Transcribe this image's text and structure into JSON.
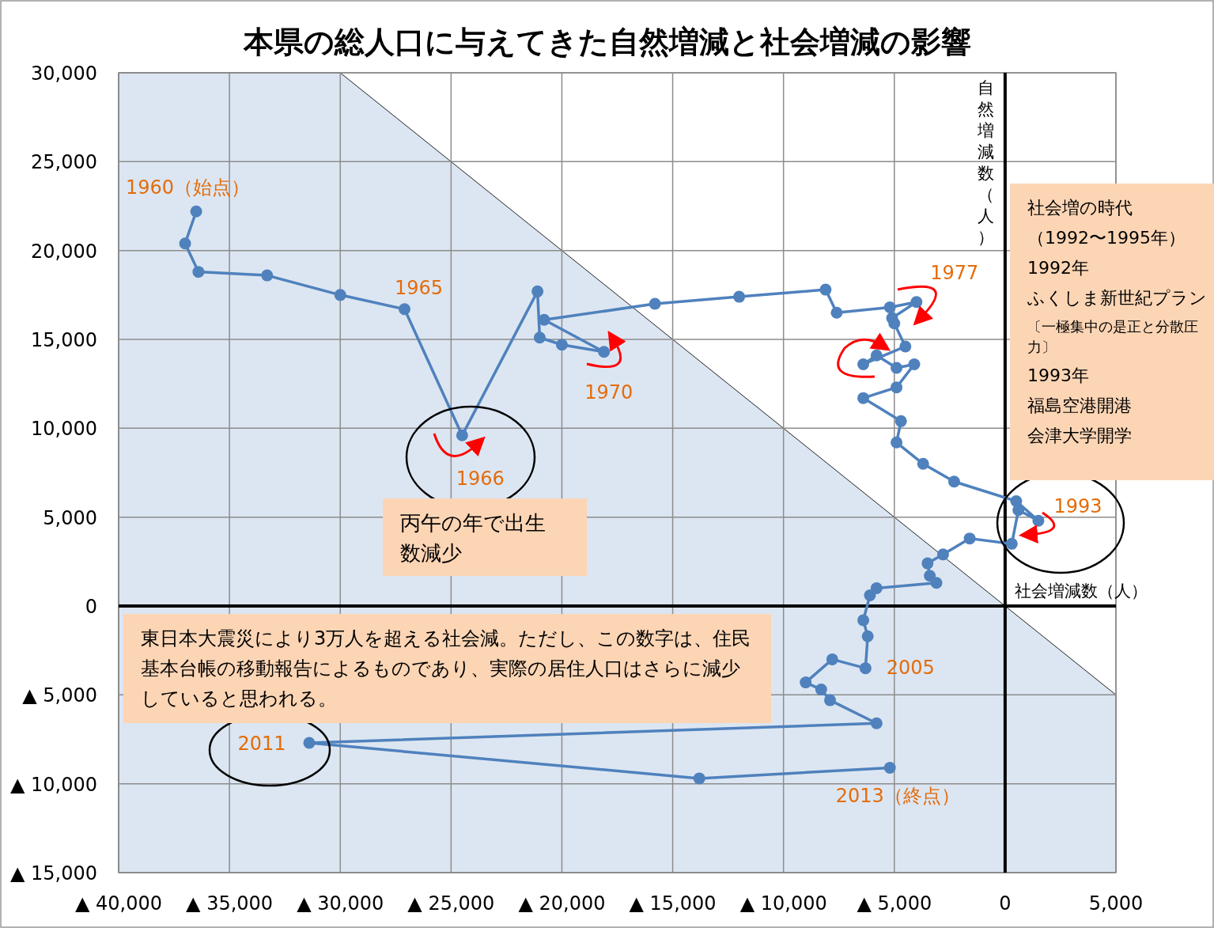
{
  "chart_data": {
    "type": "line",
    "title": "本県の総人口に与えてきた自然増減と社会増減の影響",
    "xlabel": "社会増減数（人）",
    "ylabel": "自然増減数（人）",
    "xlim": [
      -40000,
      5000
    ],
    "ylim": [
      -15000,
      30000
    ],
    "xticks": [
      {
        "value": -40000,
        "label": "▲ 40,000"
      },
      {
        "value": -35000,
        "label": "▲ 35,000"
      },
      {
        "value": -30000,
        "label": "▲ 30,000"
      },
      {
        "value": -25000,
        "label": "▲ 25,000"
      },
      {
        "value": -20000,
        "label": "▲ 20,000"
      },
      {
        "value": -15000,
        "label": "▲ 15,000"
      },
      {
        "value": -10000,
        "label": "▲ 10,000"
      },
      {
        "value": -5000,
        "label": "▲ 5,000"
      },
      0,
      {
        "value": 5000,
        "label": "5,000"
      }
    ],
    "yticks": [
      {
        "value": -15000,
        "label": "▲ 15,000"
      },
      {
        "value": -10000,
        "label": "▲ 10,000"
      },
      {
        "value": -5000,
        "label": "▲ 5,000"
      },
      0,
      {
        "value": 5000,
        "label": "5,000"
      },
      {
        "value": 10000,
        "label": "10,000"
      },
      {
        "value": 15000,
        "label": "15,000"
      },
      {
        "value": 20000,
        "label": "20,000"
      },
      {
        "value": 25000,
        "label": "25,000"
      },
      {
        "value": 30000,
        "label": "30,000"
      }
    ],
    "grid": true,
    "series": [
      {
        "type": "area",
        "color": "#dce6f2",
        "x": [
          -40000,
          -40000,
          -30000,
          5000,
          5000
        ],
        "values": [
          -15000,
          30000,
          30000,
          -5000,
          -15000
        ]
      },
      {
        "color": "#4f81bd",
        "marker": "circle",
        "x": [
          -36500,
          -37000,
          -36400,
          -33300,
          -30000,
          -27100,
          -24500,
          -21100,
          -21000,
          -20000,
          -18100,
          -20800,
          -15800,
          -12000,
          -8100,
          -7600,
          -5200,
          -4000,
          -5100,
          -5000,
          -4500,
          -6400,
          -5800,
          -4900,
          -4100,
          -4900,
          -6400,
          -4700,
          -4900,
          -3700,
          -2300,
          500,
          1500,
          600,
          300,
          -1600,
          -2800,
          -3500,
          -3400,
          -3100,
          -5800,
          -6100,
          -6400,
          -6200,
          -6300,
          -7800,
          -9000,
          -8300,
          -7900,
          -5800,
          -31400,
          -13800,
          -5200
        ],
        "values": [
          22200,
          20400,
          18800,
          18600,
          17500,
          16700,
          9600,
          17700,
          15100,
          14700,
          14300,
          16100,
          17000,
          17400,
          17800,
          16500,
          16800,
          17100,
          16200,
          15900,
          14600,
          13600,
          14100,
          13400,
          13600,
          12300,
          11700,
          10400,
          9200,
          8000,
          7000,
          5900,
          4800,
          5400,
          3500,
          3800,
          2900,
          2400,
          1700,
          1300,
          1000,
          600,
          -800,
          -1700,
          -3500,
          -3000,
          -4300,
          -4700,
          -5300,
          -6600,
          -7700,
          -9700,
          -9100
        ]
      }
    ],
    "annotations": [
      {
        "text": "1960（始点）",
        "x": -36500,
        "y": 22200
      },
      {
        "text": "1965",
        "x": -27100,
        "y": 16700
      },
      {
        "text": "1966",
        "x": -24500,
        "y": 9600
      },
      {
        "text": "1970",
        "x": -18100,
        "y": 14300
      },
      {
        "text": "1977",
        "x": -4000,
        "y": 17100
      },
      {
        "text": "1993",
        "x": 1500,
        "y": 4800
      },
      {
        "text": "2005",
        "x": -6300,
        "y": -3500
      },
      {
        "text": "2011",
        "x": -31400,
        "y": -7700
      },
      {
        "text": "2013（終点）",
        "x": -5200,
        "y": -9100
      },
      "社会増の時代",
      "（1992〜1995年）",
      "1992年",
      "ふくしま新世紀プラン",
      "〔一極集中の是正と分散圧力〕",
      "1993年",
      "福島空港開港",
      "会津大学開学",
      "丙午の年で出生数減少",
      "東日本大震災により3万人を超える社会減。ただし、この数字は、住民基本台帳の移動報告によるものであり、実際の居住人口はさらに減少していると思われる。"
    ]
  }
}
